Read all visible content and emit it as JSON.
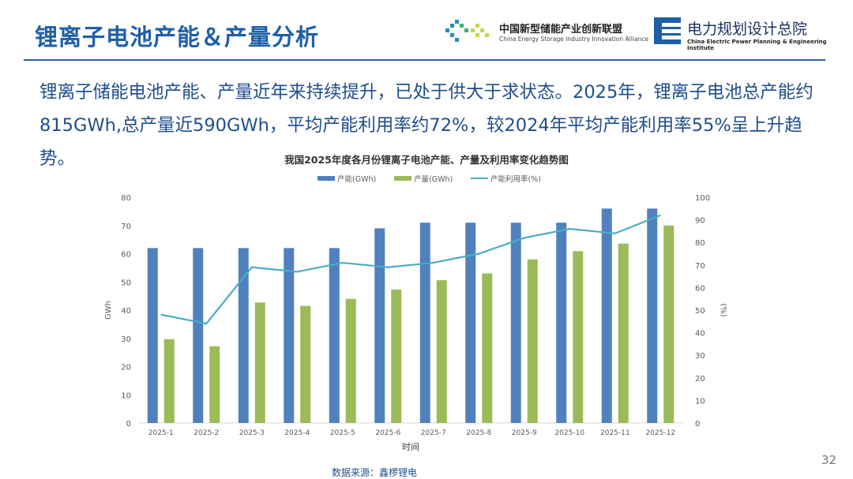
{
  "header": {
    "title": "锂离子电池产能＆产量分析",
    "logo1_cn": "中国新型储能产业创新联盟",
    "logo1_en": "China Energy Storage Industry Innovation Alliance",
    "logo2_cn": "电力规划设计总院",
    "logo2_en": "China Electric Power Planning & Engineering Institute"
  },
  "summary": "锂离子储能电池产能、产量近年来持续提升，已处于供大于求状态。2025年，锂离子电池总产能约815GWh,总产量近590GWh，平均产能利用率约72%，较2024年平均产能利用率55%呈上升趋势。",
  "source": "数据来源：鑫椤锂电",
  "page_number": "32",
  "colors": {
    "capacity": "#4f81bd",
    "production": "#9bbb59",
    "utilization": "#4bacc6",
    "accent": "#1f5fa8"
  },
  "chart_data": {
    "type": "bar",
    "title": "我国2025年度各月份锂离子电池产能、产量及利用率变化趋势图",
    "xlabel": "时间",
    "ylabel": "GWh",
    "y2label": "(%)",
    "ylim": [
      0,
      80
    ],
    "y2lim": [
      0,
      100
    ],
    "yticks": [
      0,
      10,
      20,
      30,
      40,
      50,
      60,
      70,
      80
    ],
    "y2ticks": [
      0,
      10,
      20,
      30,
      40,
      50,
      60,
      70,
      80,
      90,
      100
    ],
    "legend_position": "top",
    "categories": [
      "2025-1",
      "2025-2",
      "2025-3",
      "2025-4",
      "2025-5",
      "2025-6",
      "2025-7",
      "2025-8",
      "2025-9",
      "2025-10",
      "2025-11",
      "2025-12"
    ],
    "series": [
      {
        "name": "产能(GWh)",
        "type": "bar",
        "axis": "left",
        "values": [
          62,
          62,
          62,
          62,
          62,
          69,
          71,
          71,
          71,
          71,
          76,
          76
        ]
      },
      {
        "name": "产量(GWh)",
        "type": "bar",
        "axis": "left",
        "values": [
          29.7,
          27.2,
          42.7,
          41.5,
          44,
          47.3,
          50.6,
          53,
          58,
          60.9,
          63.6,
          70
        ]
      },
      {
        "name": "产能利用率(%)",
        "type": "line",
        "axis": "right",
        "values": [
          48,
          44,
          69,
          67,
          71,
          69,
          71,
          75,
          82,
          86,
          84,
          92
        ]
      }
    ]
  }
}
